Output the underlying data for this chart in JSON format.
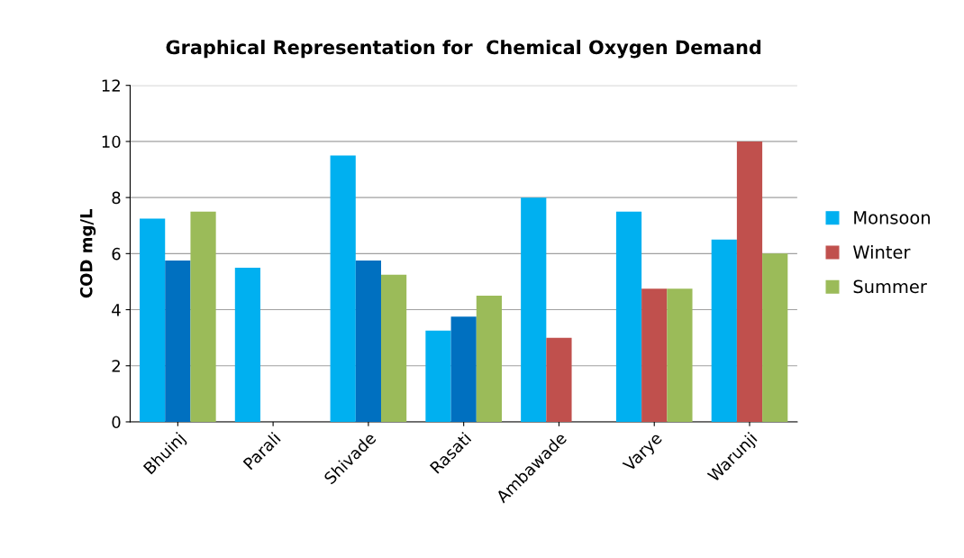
{
  "chart_data": {
    "type": "bar",
    "title": "Graphical Representation for  Chemical Oxygen Demand",
    "ylabel": "COD mg/L",
    "categories": [
      "Bhuinj",
      "Parali",
      "Shivade",
      "Rasati",
      "Ambawade",
      "Varye",
      "Warunji"
    ],
    "series": [
      {
        "name": "Monsoon",
        "color": "#00b0f0",
        "values": [
          7.25,
          5.5,
          9.5,
          3.25,
          8,
          7.5,
          6.5
        ]
      },
      {
        "name": "Winter",
        "color": "#c0504d",
        "colors": [
          "#0070c0",
          null,
          "#0070c0",
          "#0070c0",
          "#c0504d",
          "#c0504d",
          "#c0504d"
        ],
        "values": [
          5.75,
          null,
          5.75,
          3.75,
          3,
          4.75,
          10
        ]
      },
      {
        "name": "Summer",
        "color": "#9bbb59",
        "values": [
          7.5,
          null,
          5.25,
          4.5,
          null,
          4.75,
          6
        ]
      }
    ],
    "ylim": [
      0,
      12
    ],
    "yticks": [
      0,
      2,
      4,
      6,
      8,
      10,
      12
    ],
    "grid": "y",
    "legend": "right"
  }
}
